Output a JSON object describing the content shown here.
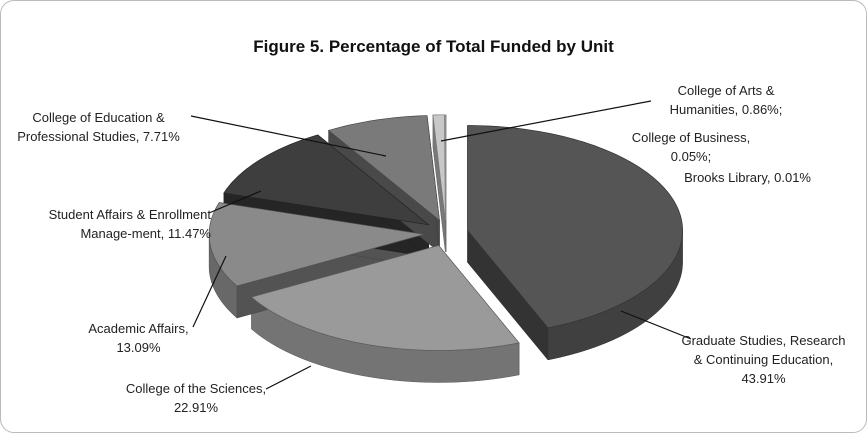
{
  "chart_data": {
    "type": "pie",
    "title": "Figure 5. Percentage of Total Funded by Unit",
    "categories": [
      "Graduate Studies, Research & Continuing Education, 43.91%",
      "College of the Sciences, 22.91%",
      "Academic Affairs, 13.09%",
      "Student Affairs & Enrollment Manage-ment, 11.47%",
      "College of Education & Professional Studies, 7.71%",
      "College of Arts & Humanities, 0.86%;",
      "College of Business, 0.05%;",
      "Brooks Library, 0.01%"
    ],
    "values": [
      43.91,
      22.91,
      13.09,
      11.47,
      7.71,
      0.86,
      0.05,
      0.01
    ],
    "colors": [
      "#555555",
      "#9a9a9a",
      "#8a8a8a",
      "#3e3e3e",
      "#7a7a7a",
      "#c8c8c8",
      "#e0e0e0",
      "#f2f2f2"
    ]
  }
}
